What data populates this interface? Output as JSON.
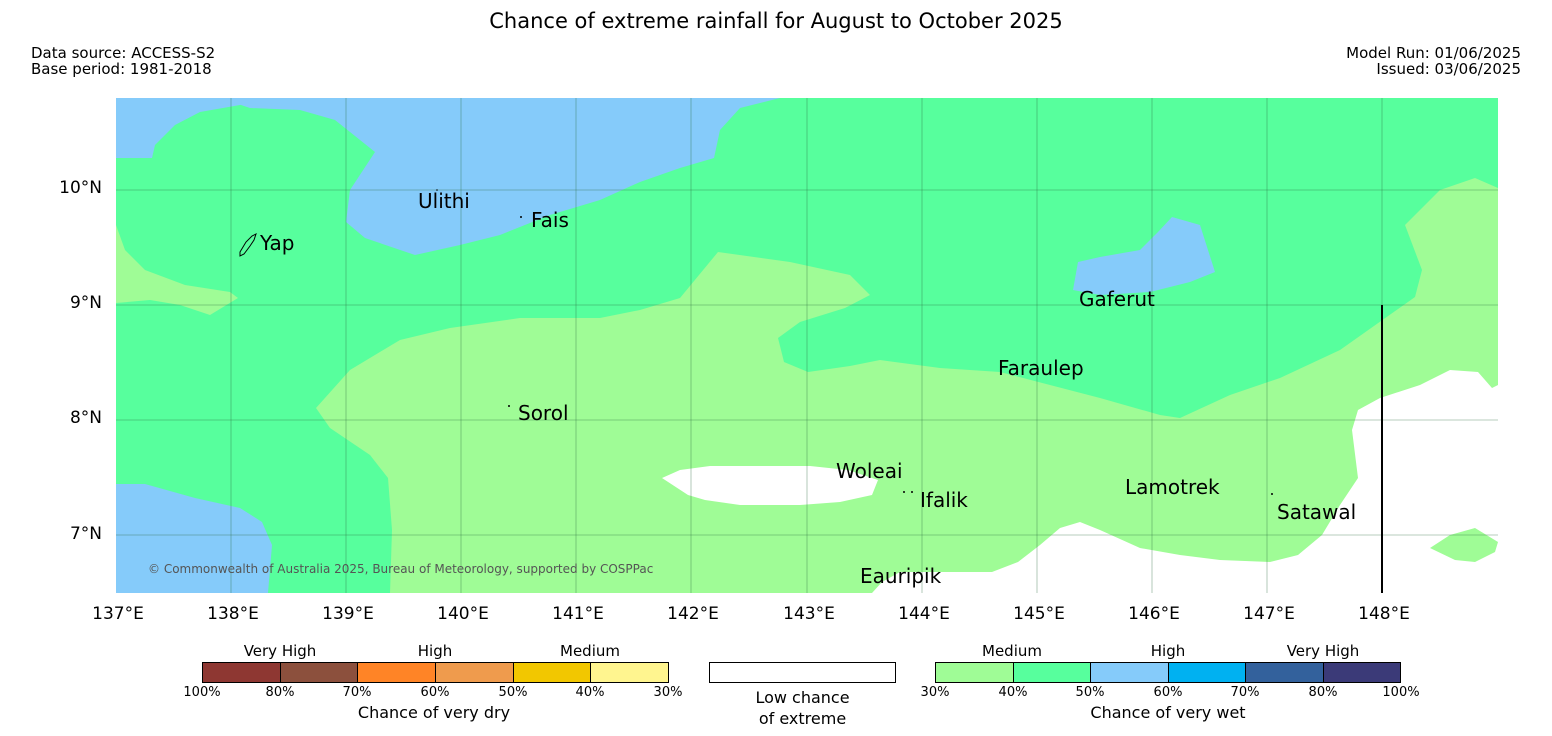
{
  "title": "Chance of extreme rainfall for August to October 2025",
  "meta": {
    "data_source": "Data source: ACCESS-S2",
    "base_period": "Base period: 1981-2018",
    "model_run": "Model Run: 01/06/2025",
    "issued": "Issued: 03/06/2025"
  },
  "map": {
    "latitude_labels": [
      "10°N",
      "9°N",
      "8°N",
      "7°N"
    ],
    "longitude_labels": [
      "137°E",
      "138°E",
      "139°E",
      "140°E",
      "141°E",
      "142°E",
      "143°E",
      "144°E",
      "145°E",
      "146°E",
      "147°E",
      "148°E"
    ],
    "places": {
      "yap": "Yap",
      "ulithi": "Ulithi",
      "fais": "Fais",
      "gaferut": "Gaferut",
      "faraulep": "Faraulep",
      "sorol": "Sorol",
      "woleai": "Woleai",
      "ifalik": "Ifalik",
      "lamotrek": "Lamotrek",
      "satawal": "Satawal",
      "eauripik": "Eauripik"
    },
    "copyright": "© Commonwealth of Australia 2025, Bureau of Meteorology, supported by COSPPac",
    "colors": {
      "wet_medium_30_40": "#9ffc96",
      "wet_medium_40_50": "#57ff9d",
      "wet_high_50_60": "#85cbfa",
      "low_chance": "#ffffff"
    }
  },
  "legend": {
    "dry": {
      "categories": [
        "Very High",
        "High",
        "Medium"
      ],
      "ticks": [
        "100%",
        "80%",
        "70%",
        "60%",
        "50%",
        "40%",
        "30%"
      ],
      "title": "Chance of very dry",
      "colors": [
        "#8e3732",
        "#8c503d",
        "#ff8426",
        "#ef9b4d",
        "#f2c700",
        "#f7e34f",
        "#fff58f"
      ]
    },
    "low": {
      "line1": "Low chance",
      "line2": "of extreme",
      "color": "#ffffff"
    },
    "wet": {
      "categories": [
        "Medium",
        "High",
        "Very High"
      ],
      "ticks": [
        "30%",
        "40%",
        "50%",
        "60%",
        "70%",
        "80%",
        "100%"
      ],
      "title": "Chance of very wet",
      "colors": [
        "#9ffc96",
        "#57ff9d",
        "#85cbfa",
        "#00b1f1",
        "#33619c",
        "#3b3a78"
      ]
    }
  }
}
